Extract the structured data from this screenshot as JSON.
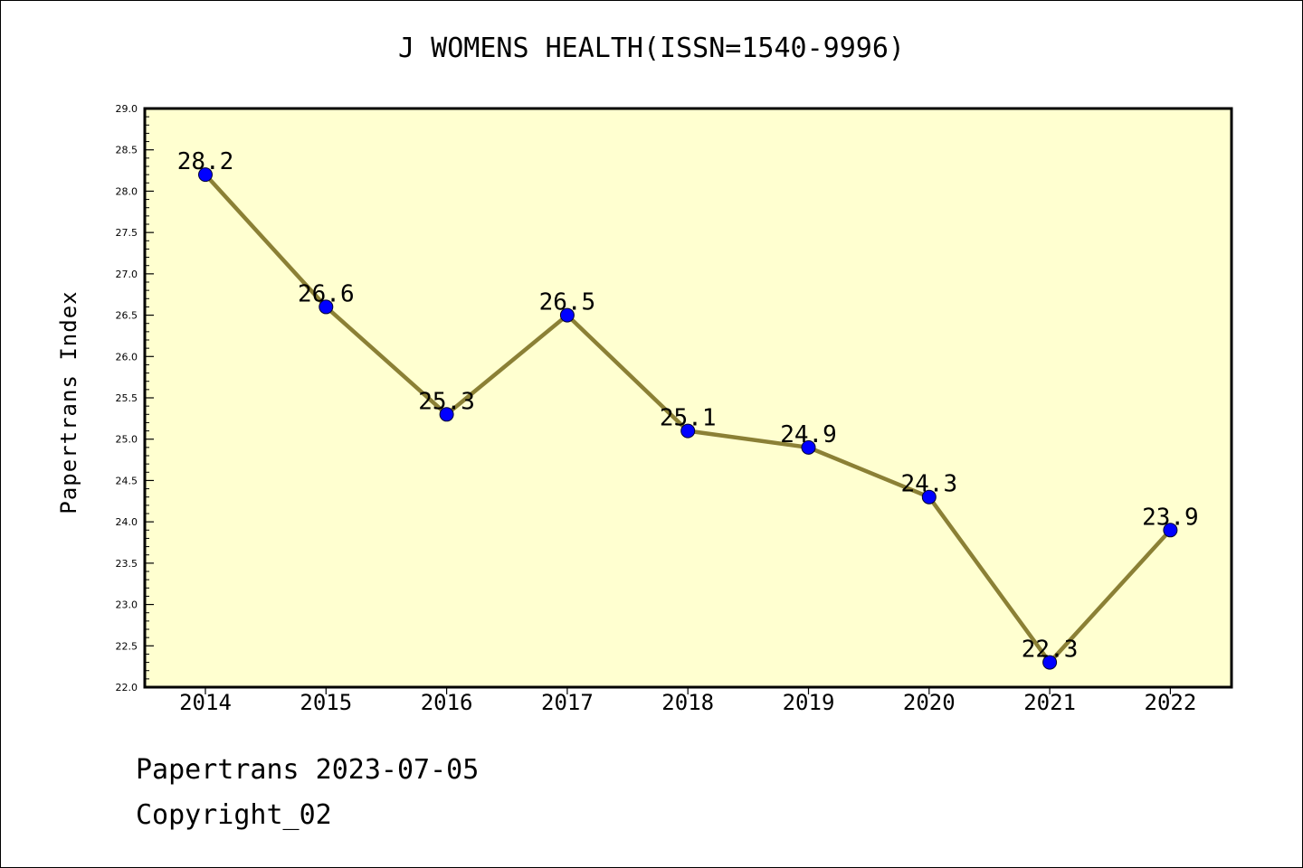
{
  "chart_data": {
    "type": "line",
    "title": "J WOMENS HEALTH(ISSN=1540-9996)",
    "xlabel": "",
    "ylabel": "Papertrans Index",
    "categories": [
      "2014",
      "2015",
      "2016",
      "2017",
      "2018",
      "2019",
      "2020",
      "2021",
      "2022"
    ],
    "series": [
      {
        "values": [
          28.2,
          26.6,
          25.3,
          26.5,
          25.1,
          24.9,
          24.3,
          22.3,
          23.9
        ],
        "data_labels": [
          "28.2",
          "26.6",
          "25.3",
          "26.5",
          "25.1",
          "24.9",
          "24.3",
          "22.3",
          "23.9"
        ],
        "line_color": "#8b8035",
        "marker_color": "#0000ff"
      }
    ],
    "ylim": [
      22.0,
      29.0
    ],
    "yticks": [
      "22.0",
      "22.5",
      "23.0",
      "23.5",
      "24.0",
      "24.5",
      "25.0",
      "25.5",
      "26.0",
      "26.5",
      "27.0",
      "27.5",
      "28.0",
      "28.5",
      "29.0"
    ],
    "grid": false,
    "plot_background": "#ffffd0"
  },
  "footer": {
    "date_line": "Papertrans 2023-07-05",
    "copyright_line": "Copyright_02"
  }
}
